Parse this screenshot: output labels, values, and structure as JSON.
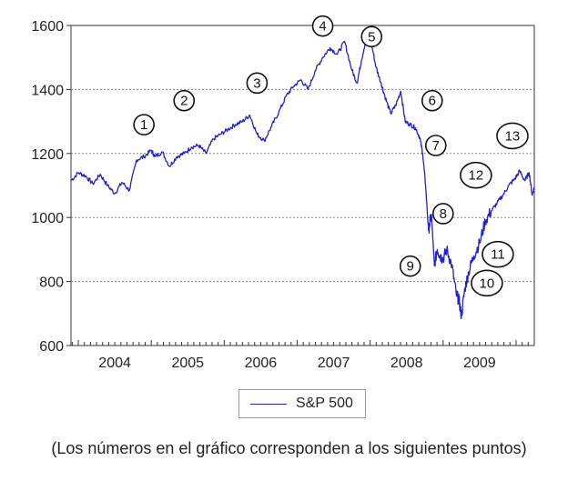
{
  "chart_data": {
    "type": "line",
    "ylim": [
      600,
      1600
    ],
    "yticks": [
      600,
      800,
      1000,
      1200,
      1400,
      1600
    ],
    "ytick_labels": [
      "600",
      "800",
      "1000",
      "1200",
      "1400",
      "1600"
    ],
    "xlim": [
      2003.9,
      2010.25
    ],
    "xtick_labels": [
      {
        "label": "2004",
        "pos": 2004.5
      },
      {
        "label": "2005",
        "pos": 2005.5
      },
      {
        "label": "2006",
        "pos": 2006.5
      },
      {
        "label": "2007",
        "pos": 2007.5
      },
      {
        "label": "2008",
        "pos": 2008.5
      },
      {
        "label": "2009",
        "pos": 2009.5
      }
    ],
    "grid": "horizontal-dotted",
    "legend_position": "bottom-center",
    "series": [
      {
        "name": "S&P 500",
        "color": "#2222cc",
        "points": [
          [
            2003.9,
            1115
          ],
          [
            2004.0,
            1140
          ],
          [
            2004.1,
            1130
          ],
          [
            2004.2,
            1105
          ],
          [
            2004.3,
            1135
          ],
          [
            2004.4,
            1100
          ],
          [
            2004.5,
            1075
          ],
          [
            2004.6,
            1110
          ],
          [
            2004.7,
            1085
          ],
          [
            2004.8,
            1180
          ],
          [
            2004.9,
            1190
          ],
          [
            2005.0,
            1210
          ],
          [
            2005.05,
            1190
          ],
          [
            2005.15,
            1205
          ],
          [
            2005.25,
            1160
          ],
          [
            2005.35,
            1190
          ],
          [
            2005.45,
            1200
          ],
          [
            2005.55,
            1220
          ],
          [
            2005.65,
            1225
          ],
          [
            2005.75,
            1200
          ],
          [
            2005.85,
            1245
          ],
          [
            2005.95,
            1260
          ],
          [
            2006.05,
            1275
          ],
          [
            2006.15,
            1290
          ],
          [
            2006.25,
            1300
          ],
          [
            2006.35,
            1320
          ],
          [
            2006.45,
            1260
          ],
          [
            2006.55,
            1240
          ],
          [
            2006.65,
            1285
          ],
          [
            2006.75,
            1330
          ],
          [
            2006.85,
            1380
          ],
          [
            2006.95,
            1410
          ],
          [
            2007.05,
            1430
          ],
          [
            2007.15,
            1400
          ],
          [
            2007.25,
            1460
          ],
          [
            2007.35,
            1500
          ],
          [
            2007.45,
            1530
          ],
          [
            2007.55,
            1510
          ],
          [
            2007.65,
            1550
          ],
          [
            2007.75,
            1460
          ],
          [
            2007.82,
            1420
          ],
          [
            2007.88,
            1490
          ],
          [
            2007.95,
            1565
          ],
          [
            2008.02,
            1540
          ],
          [
            2008.08,
            1470
          ],
          [
            2008.15,
            1420
          ],
          [
            2008.2,
            1380
          ],
          [
            2008.28,
            1325
          ],
          [
            2008.35,
            1350
          ],
          [
            2008.42,
            1395
          ],
          [
            2008.48,
            1300
          ],
          [
            2008.55,
            1290
          ],
          [
            2008.62,
            1280
          ],
          [
            2008.68,
            1250
          ],
          [
            2008.72,
            1200
          ],
          [
            2008.76,
            1100
          ],
          [
            2008.8,
            960
          ],
          [
            2008.84,
            1010
          ],
          [
            2008.88,
            850
          ],
          [
            2008.92,
            900
          ],
          [
            2008.96,
            880
          ],
          [
            2009.0,
            870
          ],
          [
            2009.05,
            900
          ],
          [
            2009.12,
            850
          ],
          [
            2009.18,
            760
          ],
          [
            2009.22,
            740
          ],
          [
            2009.25,
            690
          ],
          [
            2009.3,
            780
          ],
          [
            2009.35,
            830
          ],
          [
            2009.42,
            880
          ],
          [
            2009.5,
            920
          ],
          [
            2009.58,
            990
          ],
          [
            2009.66,
            1020
          ],
          [
            2009.74,
            1045
          ],
          [
            2009.82,
            1070
          ],
          [
            2009.9,
            1100
          ],
          [
            2009.98,
            1120
          ],
          [
            2010.05,
            1145
          ],
          [
            2010.12,
            1115
          ],
          [
            2010.18,
            1140
          ],
          [
            2010.22,
            1070
          ],
          [
            2010.25,
            1095
          ]
        ]
      }
    ],
    "annotations": [
      {
        "label": "1",
        "x": 2004.9,
        "y": 1290
      },
      {
        "label": "2",
        "x": 2005.45,
        "y": 1365
      },
      {
        "label": "3",
        "x": 2006.45,
        "y": 1420
      },
      {
        "label": "4",
        "x": 2007.35,
        "y": 1598
      },
      {
        "label": "5",
        "x": 2008.02,
        "y": 1565
      },
      {
        "label": "6",
        "x": 2008.85,
        "y": 1365
      },
      {
        "label": "7",
        "x": 2008.9,
        "y": 1225
      },
      {
        "label": "8",
        "x": 2009.0,
        "y": 1012
      },
      {
        "label": "9",
        "x": 2008.55,
        "y": 848
      },
      {
        "label": "10",
        "x": 2009.6,
        "y": 795
      },
      {
        "label": "11",
        "x": 2009.75,
        "y": 885
      },
      {
        "label": "12",
        "x": 2009.45,
        "y": 1132
      },
      {
        "label": "13",
        "x": 2009.95,
        "y": 1255
      }
    ]
  },
  "caption": "(Los números en el gráfico corresponden a los siguientes puntos)"
}
